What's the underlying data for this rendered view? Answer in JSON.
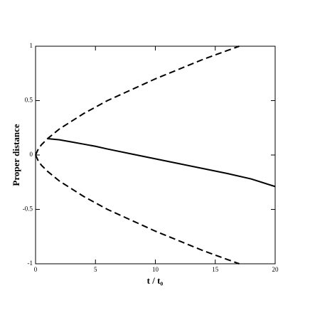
{
  "chart_data": {
    "type": "line",
    "xlabel": "t / t₀",
    "ylabel": "Proper distance",
    "xlim": [
      0,
      20
    ],
    "ylim": [
      -1,
      1
    ],
    "xticks": [
      0,
      5,
      10,
      15,
      20
    ],
    "yticks": [
      -1,
      -0.5,
      0,
      0.5,
      1
    ],
    "series": [
      {
        "color": "#000000",
        "linestyle": "dashed",
        "x": [
          0,
          0.25,
          0.5,
          1,
          2,
          3,
          4,
          5,
          6,
          8,
          10,
          12,
          14,
          16,
          17
        ],
        "values": [
          0,
          0.06,
          0.095,
          0.15,
          0.24,
          0.31,
          0.38,
          0.44,
          0.5,
          0.6,
          0.7,
          0.79,
          0.88,
          0.96,
          1
        ]
      },
      {
        "color": "#000000",
        "linestyle": "dashed",
        "x": [
          0,
          0.25,
          0.5,
          1,
          2,
          3,
          4,
          5,
          6,
          8,
          10,
          12,
          14,
          16,
          17
        ],
        "values": [
          0,
          -0.06,
          -0.095,
          -0.15,
          -0.24,
          -0.31,
          -0.38,
          -0.44,
          -0.5,
          -0.6,
          -0.7,
          -0.79,
          -0.88,
          -0.96,
          -1
        ]
      },
      {
        "color": "#000000",
        "linestyle": "solid",
        "x": [
          1,
          2,
          3,
          4,
          5,
          6,
          8,
          10,
          12,
          14,
          16,
          18,
          20
        ],
        "values": [
          0.15,
          0.14,
          0.12,
          0.1,
          0.08,
          0.055,
          0.01,
          -0.035,
          -0.08,
          -0.125,
          -0.17,
          -0.22,
          -0.29
        ]
      }
    ]
  }
}
